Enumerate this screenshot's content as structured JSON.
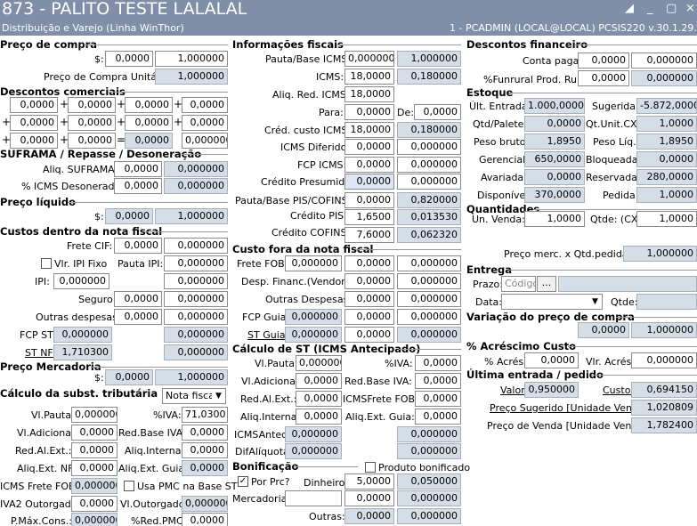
{
  "header": {
    "title": "873 - PALITO TESTE LALALAL",
    "subtitle": "Distribuição e Varejo (Linha WinThor)",
    "status": "1 - PCADMIN (LOCAL@LOCAL)   PCSIS220  v.30.1.29.002",
    "win_icons": [
      "◢",
      "_",
      "▢",
      "×"
    ]
  },
  "sections": {
    "preco_compra": "Preço de compra",
    "descontos_comerciais": "Descontos comerciais",
    "suframa": "SUFRAMA / Repasse / Desoneração",
    "preco_liquido": "Preço líquido",
    "custos_dentro": "Custos dentro da nota fiscal",
    "preco_mercadoria": "Preço Mercadoria",
    "calc_subst": "Cálculo da subst. tributária (ST)",
    "info_fiscais": "Informações fiscais",
    "custo_fora": "Custo fora da nota fiscal",
    "calc_st": "Cálculo de ST (ICMS Antecipado)",
    "bonificacao": "Bonificação",
    "descontos_financeiro": "Descontos financeiro",
    "estoque": "Estoque",
    "quantidades": "Quantidades",
    "entrega": "Entrega",
    "variacao": "Variação do preço de compra",
    "acrescimo": "% Acréscimo Custo",
    "ultima_entrada": "Última entrada / pedido"
  },
  "c1": {
    "dollar": "$:",
    "pc_val": "0,0000",
    "pc_val2": "1,000000",
    "pcu_label": "Preço de Compra Unitário",
    "pcu_val": "1,000000",
    "dc": [
      [
        "0,0000",
        "0,0000",
        "0,0000",
        "0,0000"
      ],
      [
        "0,0000",
        "0,0000",
        "0,0000",
        "0,0000"
      ],
      [
        "0,0000",
        "0,0000",
        "0,0000",
        "0,000000"
      ]
    ],
    "plus": "+",
    "eq": "=",
    "aliq_suf_label": "Aliq. SUFRAMA:",
    "aliq_suf": "0,0000",
    "aliq_suf2": "0,000000",
    "icms_des_label": "% ICMS Desonerado:",
    "icms_des": "0,0000",
    "icms_des2": "0,000000",
    "pl_val": "0,0000",
    "pl_val2": "1,000000",
    "frete_cif_label": "Frete CIF:",
    "frete_cif": "0,0000",
    "frete_cif2": "0,000000",
    "ipi_fixo_label": "Vlr. IPI Fixo",
    "pauta_ipi_label": "Pauta IPI:",
    "pauta_ipi": "0,000000",
    "ipi_label": "IPI:",
    "ipi": "0,000000",
    "ipi2": "0,000000",
    "seguro_label": "Seguro:",
    "seguro": "0,0000",
    "seguro2": "0,000000",
    "outras_label": "Outras despesas:",
    "outras": "0,0000",
    "outras2": "0,000000",
    "fcp_st_label": "FCP ST:",
    "fcp_st": "0,000000",
    "fcp_st2": "0,000000",
    "st_nf_label": "ST NF:",
    "st_nf": "1,710300",
    "st_nf2": "0,000000",
    "pm_val": "0,0000",
    "pm_val2": "1,000000",
    "nota_fiscal": "Nota fiscal",
    "vl_pauta_label": "Vl.Pauta:",
    "vl_pauta": "0,000000",
    "piva_label": "%IVA:",
    "piva": "71,0300",
    "vl_adic_label": "Vl.Adicional:",
    "vl_adic": "0,0000",
    "red_base_iva_label": "Red.Base IVA:",
    "red_base_iva": "0,0000",
    "red_al_ext_label": "Red.Al.Ext.:",
    "red_al_ext": "0,0000",
    "aliq_interna_label": "Aliq.Interna:",
    "aliq_interna": "0,0000",
    "aliq_ext_nf_label": "Aliq.Ext. NF:",
    "aliq_ext_nf": "0,0000",
    "aliq_ext_guia_label": "Aliq.Ext. Guia:",
    "aliq_ext_guia": "0,0000",
    "icms_frete_fob_label": "ICMS Frete FOB:",
    "icms_frete_fob": "0,000000",
    "usa_pmc_label": "Usa PMC na Base ST",
    "iva2_label": "IVA2 Outorgado:",
    "iva2": "0,0000",
    "vl_outorgado_label": "Vl.Outorgado:",
    "vl_outorgado": "0,000000",
    "pmax_label": "P.Máx.Cons.:",
    "pmax": "0,000000",
    "pred_pmc_label": "%Red.PMC:",
    "pred_pmc": "0,0000"
  },
  "c2": {
    "pauta_base_icms_label": "Pauta/Base ICMS:",
    "pauta_base_icms": "0,000000",
    "pauta_base_icms2": "1,000000",
    "icms_label": "ICMS:",
    "icms": "18,0000",
    "icms2": "0,180000",
    "aliq_red_icms_label": "Aliq. Red. ICMS:",
    "aliq_red_icms": "18,0000",
    "para_label": "Para:",
    "para": "0,0000",
    "de_label": "De:",
    "de": "0,0000",
    "cred_custo_icms_label": "Créd. custo ICMS:",
    "cred_custo_icms": "18,0000",
    "cred_custo_icms2": "0,180000",
    "icms_diferido_label": "ICMS Diferido:",
    "icms_diferido": "0,0000",
    "icms_diferido2": "0,000000",
    "fcp_icms_label": "FCP ICMS:",
    "fcp_icms": "0,0000",
    "fcp_icms2": "0,000000",
    "cred_presumido_label": "Crédito Presumido:",
    "cred_presumido": "0,0000",
    "cred_presumido2": "0,000000",
    "pauta_pis_label": "Pauta/Base PIS/COFINS:",
    "pauta_pis": "0,0000",
    "pauta_pis2": "0,820000",
    "cred_pis_label": "Crédito PIS:",
    "cred_pis": "1,6500",
    "cred_pis2": "0,013530",
    "cred_cofins_label": "Crédito COFINS:",
    "cred_cofins": "7,6000",
    "cred_cofins2": "0,062320",
    "frete_fob_label": "Frete FOB:",
    "frete_fob": "0,000000",
    "frete_fob2": "0,0000",
    "frete_fob3": "0,000000",
    "desp_financ_label": "Desp. Financ.(Vendor):",
    "desp_financ": "0,0000",
    "desp_financ2": "0,000000",
    "outras_desp_label": "Outras Despesas:",
    "outras_desp": "0,0000",
    "outras_desp2": "0,000000",
    "fcp_guia_label": "FCP Guia:",
    "fcp_guia": "0,000000",
    "fcp_guia2": "0,0000",
    "fcp_guia3": "0,000000",
    "st_guia_label": "ST Guia:",
    "st_guia": "0,000000",
    "st_guia2": "0,0000",
    "st_guia3": "0,000000",
    "st_vl_pauta_label": "Vl.Pauta:",
    "st_vl_pauta": "0,000000",
    "st_piva_label": "%IVA:",
    "st_piva": "0,0000",
    "st_vl_adic_label": "Vl.Adicional:",
    "st_vl_adic": "0,0000",
    "st_red_base_iva_label": "Red.Base IVA:",
    "st_red_base_iva": "0,0000",
    "st_red_al_ext_label": "Red.Al.Ext.:",
    "st_red_al_ext": "0,0000",
    "st_icms_frete_fob_label": "ICMSFrete FOB:",
    "st_icms_frete_fob": "0,0000",
    "st_aliq_interna_label": "Aliq.Interna:",
    "st_aliq_interna": "0,0000",
    "st_aliq_ext_guia_label": "Aliq.Ext. Guia:",
    "st_aliq_ext_guia": "0,0000",
    "icms_antec_label": "ICMSAntec:",
    "icms_antec": "0,000000",
    "icms_antec2": "0,000000",
    "dif_aliquota_label": "DifAlíquota:",
    "dif_aliquota": "0,000000",
    "dif_aliquota2": "0,000000",
    "produto_bonificado_label": "Produto bonificado",
    "por_prc_label": "Por Prc?",
    "check": "✓",
    "dinheiro_label": "Dinheiro:",
    "dinheiro": "5,0000",
    "dinheiro2": "0,050000",
    "mercadoria_label": "Mercadoria:",
    "mercadoria": "0,0000",
    "mercadoria2": "0,000000",
    "outras_label": "Outras:",
    "outras": "0,0000",
    "outras2": "0,000000"
  },
  "c3": {
    "conta_pagar_label": "Conta pagar:",
    "conta_pagar": "0,0000",
    "conta_pagar2": "0,000000",
    "funrural_label": "%Funrural Prod. Rural:",
    "funrural": "0,0000",
    "funrural2": "0,000000",
    "ult_entrada_label": "Últ. Entrada:",
    "ult_entrada": "1.000,0000",
    "sugerida_label": "Sugerida:",
    "sugerida": "-5.872,0000",
    "qtd_palete_label": "Qtd/Palete:",
    "qtd_palete": "0,0000",
    "qt_unit_cx_label": "Qt.Unit.CX:",
    "qt_unit_cx": "1,0000",
    "peso_bruto_label": "Peso bruto:",
    "peso_bruto": "1,8950",
    "peso_liq_label": "Peso Líq.:",
    "peso_liq": "1,8950",
    "gerencial_label": "Gerencial:",
    "gerencial": "650,0000",
    "bloqueada_label": "Bloqueada:",
    "bloqueada": "0,0000",
    "avariada_label": "Avariada:",
    "avariada": "0,0000",
    "reservada_label": "Reservada:",
    "reservada": "280,0000",
    "disponivel_label": "Disponível:",
    "disponivel": "370,0000",
    "pedida_label": "Pedida:",
    "pedida": "1,0000",
    "un_venda_label": "Un. Venda:",
    "un_venda": "1,0000",
    "qtde_cx_label": "Qtde: (CX)",
    "qtde_cx": "1,0000",
    "preco_merc_label": "Preço merc. x Qtd.pedida:",
    "preco_merc": "1,000000",
    "prazo_label": "Prazo:",
    "codigo_placeholder": "Código",
    "ellipsis": "...",
    "data_label": "Data:",
    "qtde_label": "Qtde:",
    "var1": "0,0000",
    "var2": "1,000000",
    "acres_label": "% Acrés.:",
    "acres": "0,0000",
    "vlr_acres_label": "Vlr. Acrés.:",
    "vlr_acres": "0,000000",
    "valor_label": "Valor:",
    "valor": "0,950000",
    "custo_label": "Custo:",
    "custo": "0,694150",
    "preco_sug_label": "Preço Sugerido [Unidade Venda]:",
    "preco_sug": "1,020809",
    "preco_venda_label": "Preço de Venda [Unidade Venda]:",
    "preco_venda": "1,782400"
  }
}
